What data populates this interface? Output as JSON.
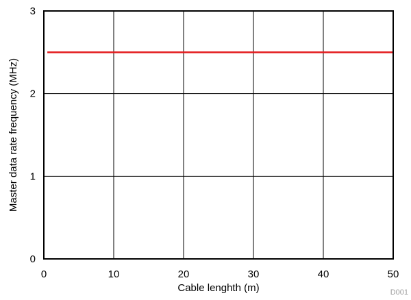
{
  "chart_data": {
    "type": "line",
    "title": "",
    "xlabel": "Cable lenghth (m)",
    "ylabel": "Master data rate frequency  (MHz)",
    "xlim": [
      0,
      50
    ],
    "ylim": [
      0,
      3
    ],
    "x_ticks": [
      0,
      10,
      20,
      30,
      40,
      50
    ],
    "y_ticks": [
      0,
      1,
      2,
      3
    ],
    "x_tick_labels": [
      "0",
      "10",
      "20",
      "30",
      "40",
      "50"
    ],
    "y_tick_labels": [
      "0",
      "1",
      "2",
      "3"
    ],
    "grid": true,
    "legend": "none",
    "series": [
      {
        "color": "#e31a1c",
        "x": [
          0.5,
          50
        ],
        "y": [
          2.5,
          2.5
        ]
      }
    ],
    "figure_id": "D001"
  }
}
